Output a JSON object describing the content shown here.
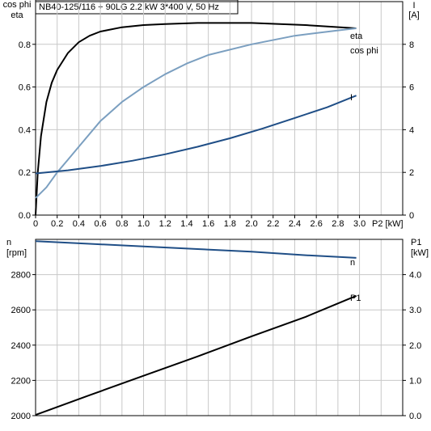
{
  "title": "NB40-125/116 + 90LG   2.2 kW   3*400 V, 50 Hz",
  "colors": {
    "eta": "#000000",
    "cos_phi": "#7b9fc0",
    "I": "#1f4e86",
    "n": "#1f4e86",
    "P1": "#000000"
  },
  "chart_data": [
    {
      "type": "line",
      "title": "NB40-125/116 + 90LG   2.2 kW   3*400 V, 50 Hz",
      "xlabel": "P2 [kW]",
      "ylabel_left": [
        "cos phi",
        "eta"
      ],
      "ylabel_right": [
        "I",
        "[A]"
      ],
      "xlim": [
        0,
        3.4
      ],
      "ylim_left": [
        0,
        1.0
      ],
      "ylim_right": [
        0,
        10
      ],
      "x_ticks": [
        "0",
        "0.2",
        "0.4",
        "0.6",
        "0.8",
        "1.0",
        "1.2",
        "1.4",
        "1.6",
        "1.8",
        "2.0",
        "2.2",
        "2.4",
        "2.6",
        "2.8",
        "3.0"
      ],
      "y_ticks_left": [
        "0.0",
        "0.2",
        "0.4",
        "0.6",
        "0.8"
      ],
      "y_ticks_right": [
        "0",
        "2",
        "4",
        "6",
        "8"
      ],
      "grid": true,
      "series": [
        {
          "name": "eta",
          "axis": "left",
          "x": [
            0,
            0.02,
            0.05,
            0.1,
            0.15,
            0.2,
            0.3,
            0.4,
            0.5,
            0.6,
            0.8,
            1.0,
            1.2,
            1.5,
            2.0,
            2.5,
            2.97
          ],
          "y": [
            0,
            0.2,
            0.37,
            0.53,
            0.62,
            0.68,
            0.76,
            0.81,
            0.84,
            0.86,
            0.88,
            0.89,
            0.895,
            0.9,
            0.9,
            0.89,
            0.875
          ]
        },
        {
          "name": "cos phi",
          "axis": "left",
          "x": [
            0,
            0.1,
            0.2,
            0.3,
            0.4,
            0.6,
            0.8,
            1.0,
            1.2,
            1.4,
            1.6,
            2.0,
            2.4,
            2.8,
            2.97
          ],
          "y": [
            0.08,
            0.13,
            0.2,
            0.26,
            0.32,
            0.44,
            0.53,
            0.6,
            0.66,
            0.71,
            0.75,
            0.8,
            0.84,
            0.865,
            0.875
          ]
        },
        {
          "name": "I",
          "axis": "right",
          "x": [
            0,
            0.3,
            0.6,
            0.9,
            1.2,
            1.5,
            1.8,
            2.1,
            2.4,
            2.7,
            2.97
          ],
          "y": [
            1.95,
            2.1,
            2.3,
            2.55,
            2.85,
            3.2,
            3.6,
            4.05,
            4.55,
            5.05,
            5.6
          ]
        }
      ]
    },
    {
      "type": "line",
      "xlabel": "",
      "ylabel_left": [
        "n",
        "[rpm]"
      ],
      "ylabel_right": [
        "P1",
        "[kW]"
      ],
      "xlim": [
        0,
        3.4
      ],
      "ylim_left": [
        2000,
        3000
      ],
      "ylim_right": [
        0,
        5
      ],
      "y_ticks_left": [
        "2000",
        "2200",
        "2400",
        "2600",
        "2800"
      ],
      "y_ticks_right": [
        "0.0",
        "1.0",
        "2.0",
        "3.0",
        "4.0"
      ],
      "grid": true,
      "series": [
        {
          "name": "n",
          "axis": "left",
          "x": [
            0,
            0.5,
            1.0,
            1.5,
            2.0,
            2.5,
            2.97
          ],
          "y": [
            2990,
            2975,
            2960,
            2945,
            2930,
            2910,
            2895
          ]
        },
        {
          "name": "P1",
          "axis": "right",
          "x": [
            0,
            0.5,
            1.0,
            1.5,
            2.0,
            2.5,
            2.97
          ],
          "y": [
            0.02,
            0.58,
            1.13,
            1.68,
            2.25,
            2.8,
            3.4
          ]
        }
      ]
    }
  ]
}
